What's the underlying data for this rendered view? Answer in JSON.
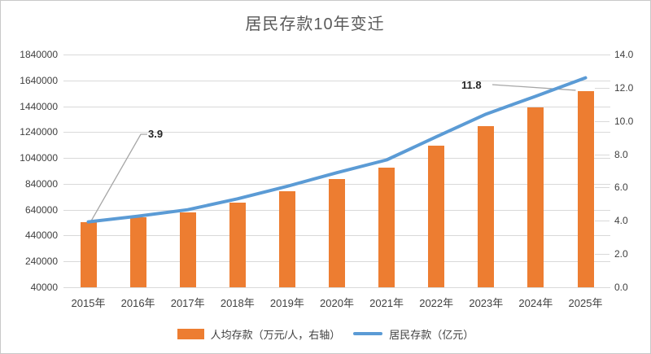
{
  "chart_data": {
    "type": "combo",
    "title": "居民存款10年变迁",
    "categories": [
      "2015年",
      "2016年",
      "2017年",
      "2018年",
      "2019年",
      "2020年",
      "2021年",
      "2022年",
      "2023年",
      "2024年",
      "2025年"
    ],
    "series": [
      {
        "name": "人均存款（万元/人，右轴）",
        "type": "bar",
        "axis": "right",
        "color": "#ED7D31",
        "values": [
          3.9,
          4.2,
          4.5,
          5.1,
          5.8,
          6.5,
          7.2,
          8.5,
          9.7,
          10.8,
          11.8
        ]
      },
      {
        "name": "居民存款（亿元）",
        "type": "line",
        "axis": "left",
        "color": "#5B9BD5",
        "values": [
          546000,
          590000,
          640000,
          724000,
          821000,
          926000,
          1025000,
          1204000,
          1379000,
          1518000,
          1660000
        ]
      }
    ],
    "axes": {
      "left": {
        "min": 40000,
        "max": 1840000,
        "ticks": [
          40000,
          240000,
          440000,
          640000,
          840000,
          1040000,
          1240000,
          1440000,
          1640000,
          1840000
        ]
      },
      "right": {
        "min": 0,
        "max": 14,
        "decimals": 1,
        "ticks": [
          0,
          2,
          4,
          6,
          8,
          10,
          12,
          14
        ]
      }
    },
    "annotations": [
      {
        "text": "3.9",
        "series": "人均存款（万元/人，右轴）",
        "category": "2015年"
      },
      {
        "text": "11.8",
        "series": "人均存款（万元/人，右轴）",
        "category": "2025年"
      }
    ],
    "legend_position": "bottom",
    "grid": true,
    "colors": {
      "grid": "#D9D9D9",
      "axis_text": "#404040",
      "title_text": "#595959",
      "annotation_text": "#262626",
      "leader_line": "#A6A6A6",
      "background": "#FFFFFF",
      "border": "#C9C9C9"
    }
  }
}
